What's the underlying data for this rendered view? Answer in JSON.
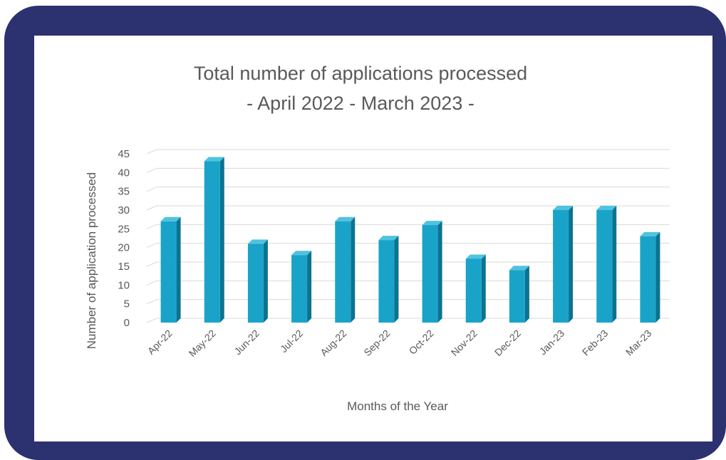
{
  "colors": {
    "frame": "#2c3170",
    "panel": "#ffffff",
    "bar_front": "#1aa3c8",
    "bar_side": "#0b7391",
    "bar_top": "#4fc3df",
    "gridline": "#d9d9d9",
    "text": "#595959"
  },
  "chart_data": {
    "type": "bar",
    "title": "Total number of applications processed",
    "subtitle": "- April 2022 - March 2023 -",
    "xlabel": "Months of the Year",
    "ylabel": "Number of application processed",
    "ylim": [
      0,
      45
    ],
    "yticks": [
      0,
      5,
      10,
      15,
      20,
      25,
      30,
      35,
      40,
      45
    ],
    "grid": true,
    "legend": "none",
    "categories": [
      "Apr-22",
      "May-22",
      "Jun-22",
      "Jul-22",
      "Aug-22",
      "Sep-22",
      "Oct-22",
      "Nov-22",
      "Dec-22",
      "Jan-23",
      "Feb-23",
      "Mar-23"
    ],
    "values": [
      27,
      43,
      21,
      18,
      27,
      22,
      26,
      17,
      14,
      30,
      30,
      23
    ]
  }
}
